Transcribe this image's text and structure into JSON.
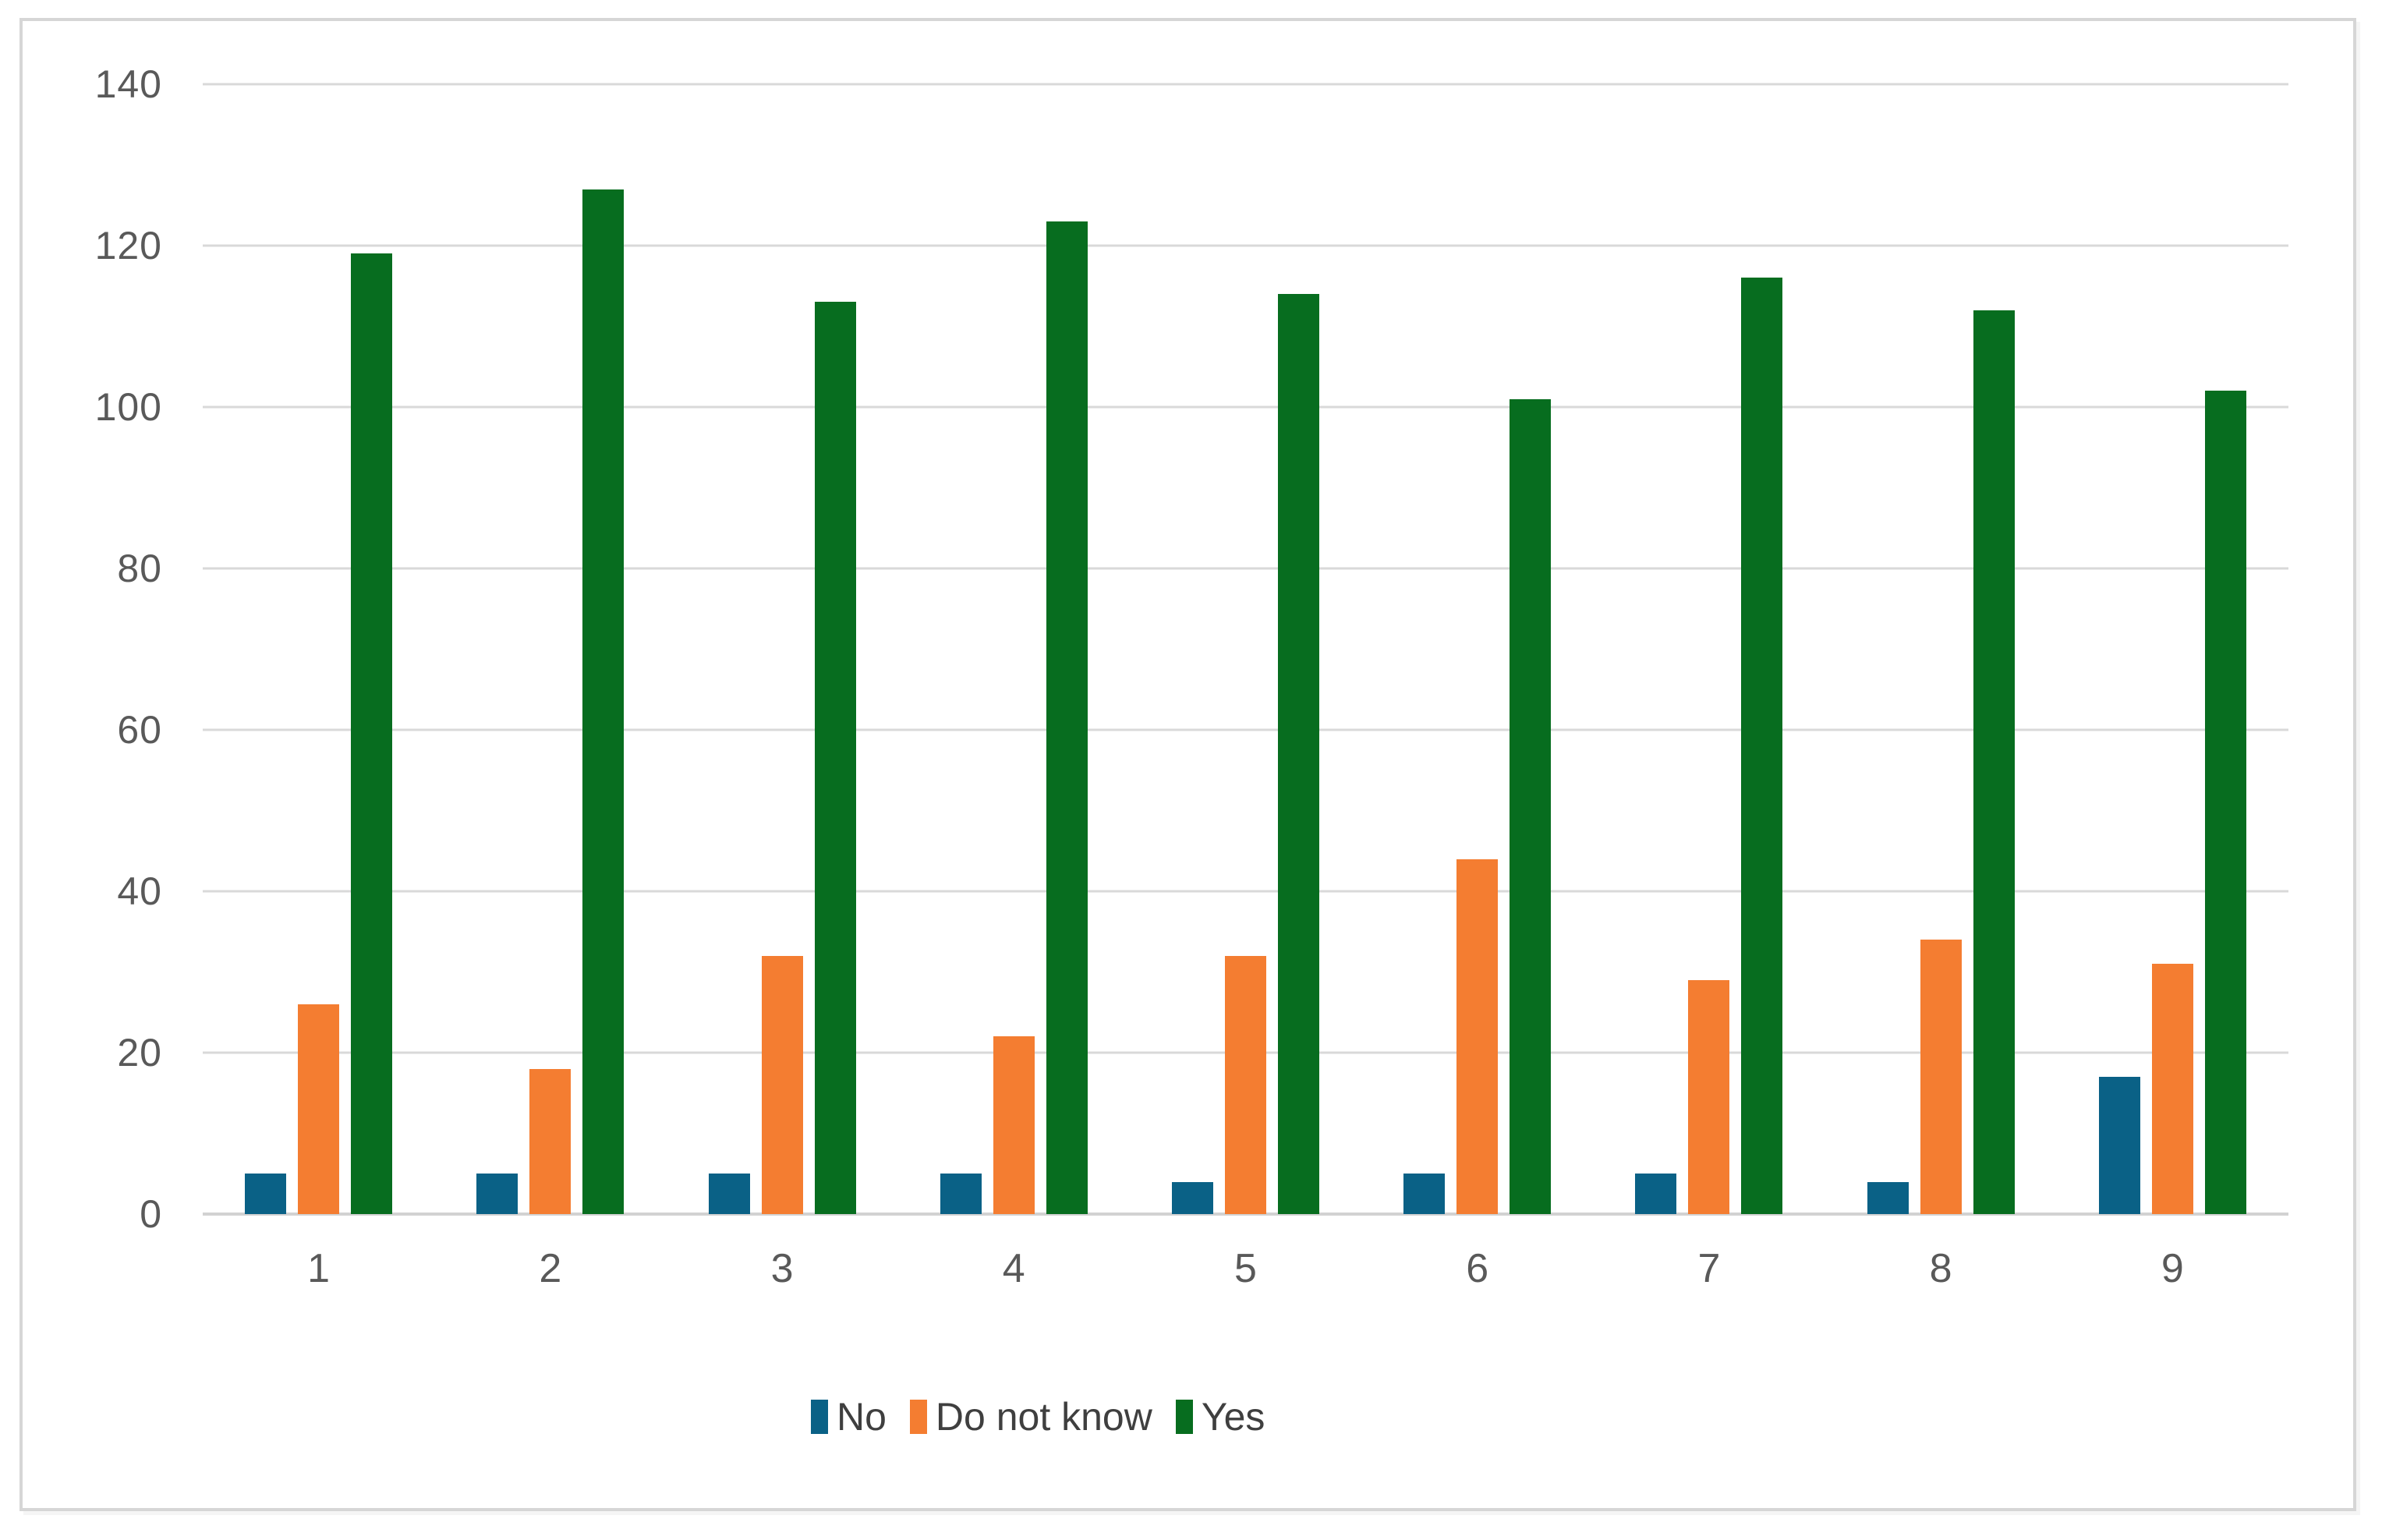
{
  "chart_data": {
    "type": "bar",
    "title": "",
    "xlabel": "",
    "ylabel": "",
    "categories": [
      "1",
      "2",
      "3",
      "4",
      "5",
      "6",
      "7",
      "8",
      "9"
    ],
    "series": [
      {
        "name": "No",
        "color": "#0A6186",
        "values": [
          5,
          5,
          5,
          5,
          4,
          5,
          5,
          4,
          17
        ]
      },
      {
        "name": "Do not know",
        "color": "#F47D31",
        "values": [
          26,
          18,
          32,
          22,
          32,
          44,
          29,
          34,
          31
        ]
      },
      {
        "name": "Yes",
        "color": "#076D1F",
        "values": [
          119,
          127,
          113,
          123,
          114,
          101,
          116,
          112,
          102
        ]
      }
    ],
    "ylim": [
      0,
      140
    ],
    "yticks": [
      0,
      20,
      40,
      60,
      80,
      100,
      120,
      140
    ],
    "grid": true,
    "legend_position": "bottom",
    "gridline_color": "#D9D9D9",
    "axis_tick_color": "#595959",
    "legend_text_color": "#3F3F3F",
    "chart_border_color": "#D6D6D6",
    "background_color": "#FFFFFF"
  }
}
